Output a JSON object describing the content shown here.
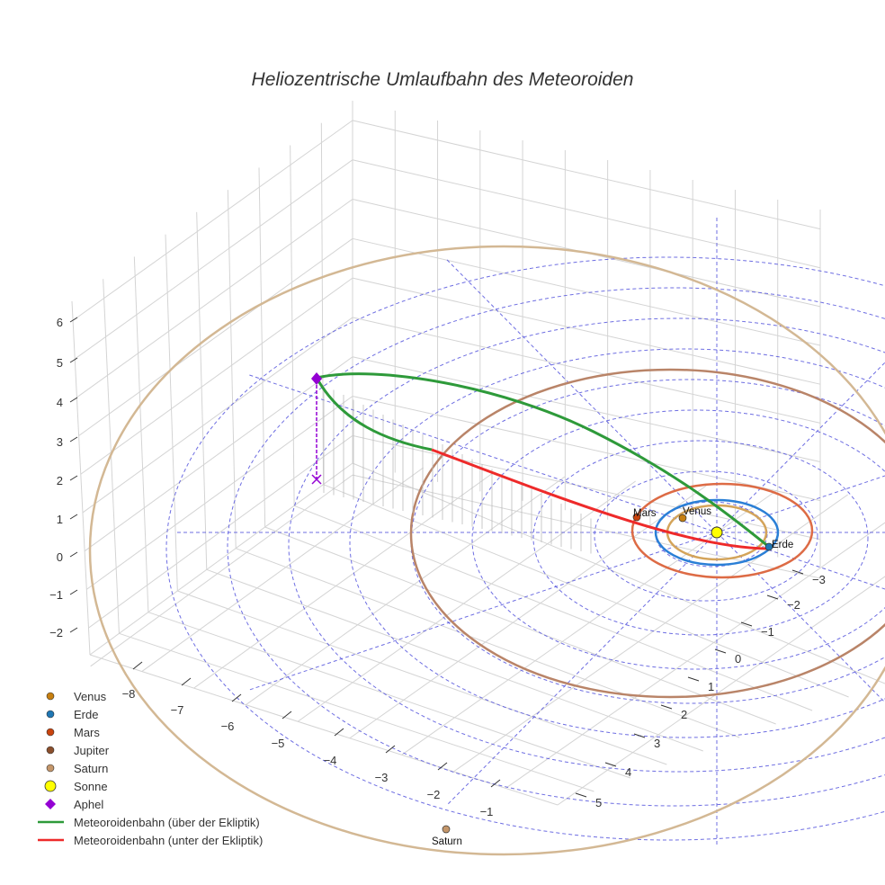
{
  "chart_data": {
    "type": "scatter3d",
    "title": "Heliozentrische Umlaufbahn des Meteoroiden",
    "axes": {
      "x": {
        "ticks": [
          "−8",
          "−7",
          "−6",
          "−5",
          "−4",
          "−3",
          "−2",
          "−1"
        ],
        "range": [
          -8.5,
          -0.5
        ]
      },
      "y": {
        "ticks": [
          "−3",
          "−2",
          "−1",
          "0",
          "1",
          "2",
          "3",
          "4",
          "5"
        ],
        "range": [
          -3.5,
          5.5
        ]
      },
      "z": {
        "ticks": [
          "6",
          "5",
          "4",
          "3",
          "2",
          "1",
          "0",
          "−1",
          "−2"
        ],
        "range": [
          -2.5,
          6.5
        ]
      }
    },
    "planets": [
      {
        "name": "Venus",
        "orbit_au": 0.72,
        "color": "#c77f10",
        "orbit_color": "#d4a45a"
      },
      {
        "name": "Erde",
        "orbit_au": 1.0,
        "color": "#1f77b4",
        "orbit_color": "#2a7fd6"
      },
      {
        "name": "Mars",
        "orbit_au": 1.52,
        "color": "#c9440e",
        "orbit_color": "#dd6b45"
      },
      {
        "name": "Jupiter",
        "orbit_au": 5.2,
        "color": "#8b4f2c",
        "orbit_color": "#b98468"
      },
      {
        "name": "Saturn",
        "orbit_au": 9.54,
        "color": "#c4966a",
        "orbit_color": "#d3b894"
      }
    ],
    "sun": {
      "name": "Sonne",
      "color": "#ffff00"
    },
    "aphel": {
      "name": "Aphel",
      "color": "#9400d3",
      "z_approx": 4.5
    },
    "orbit_segments": [
      {
        "name": "Meteoroidenbahn (über der Ekliptik)",
        "color": "#2e9a3a"
      },
      {
        "name": "Meteoroidenbahn (unter der Ekliptik)",
        "color": "#ee2a2a"
      }
    ],
    "legend": [
      "Venus",
      "Erde",
      "Mars",
      "Jupiter",
      "Saturn",
      "Sonne",
      "Aphel",
      "Meteoroidenbahn (über der Ekliptik)",
      "Meteoroidenbahn (unter der Ekliptik)"
    ],
    "legend_position": "bottom-left"
  }
}
